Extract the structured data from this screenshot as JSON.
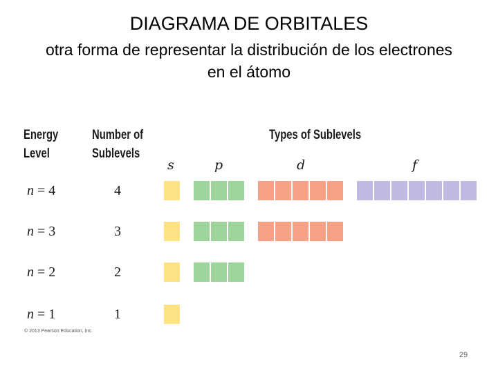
{
  "title": "DIAGRAMA DE ORBITALES",
  "subtitle": "otra forma de representar la distribución de los electrones en el átomo",
  "headers": {
    "energy_level_1": "Energy",
    "energy_level_2": "Level",
    "num_sublevels_1": "Number of",
    "num_sublevels_2": "Sublevels",
    "types": "Types of Sublevels"
  },
  "sublevel_types": [
    "s",
    "p",
    "d",
    "f"
  ],
  "colors": {
    "s": "#fde183",
    "p": "#9dd49b",
    "d": "#f6a085",
    "f": "#bdb9e0"
  },
  "levels": [
    {
      "label": "n = 4",
      "count": "4",
      "orbitals": {
        "s": 1,
        "p": 3,
        "d": 5,
        "f": 7
      }
    },
    {
      "label": "n = 3",
      "count": "3",
      "orbitals": {
        "s": 1,
        "p": 3,
        "d": 5,
        "f": 0
      }
    },
    {
      "label": "n = 2",
      "count": "2",
      "orbitals": {
        "s": 1,
        "p": 3,
        "d": 0,
        "f": 0
      }
    },
    {
      "label": "n = 1",
      "count": "1",
      "orbitals": {
        "s": 1,
        "p": 0,
        "d": 0,
        "f": 0
      }
    }
  ],
  "copyright": "© 2013 Pearson Education, Inc.",
  "page_number": "29"
}
